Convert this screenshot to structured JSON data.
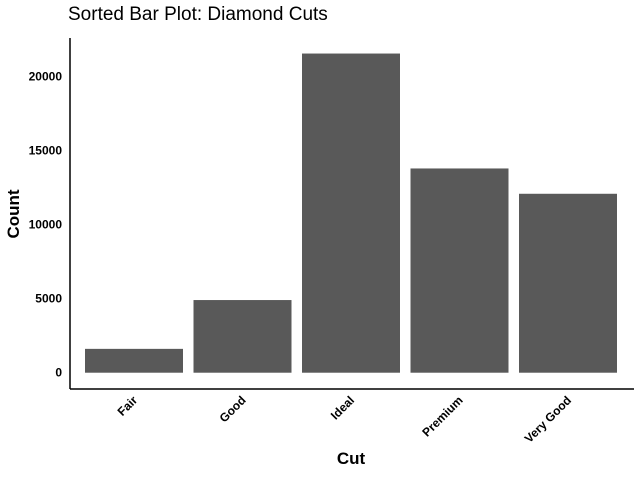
{
  "chart_data": {
    "type": "bar",
    "title": "Sorted Bar Plot: Diamond Cuts",
    "xlabel": "Cut",
    "ylabel": "Count",
    "categories": [
      "Fair",
      "Good",
      "Ideal",
      "Premium",
      "Very Good"
    ],
    "values": [
      1610,
      4906,
      21551,
      13791,
      12082
    ],
    "yticks": [
      0,
      5000,
      10000,
      15000,
      20000
    ],
    "ylim": [
      -1100,
      22600
    ],
    "grid": false,
    "bar_color": "#595959"
  }
}
